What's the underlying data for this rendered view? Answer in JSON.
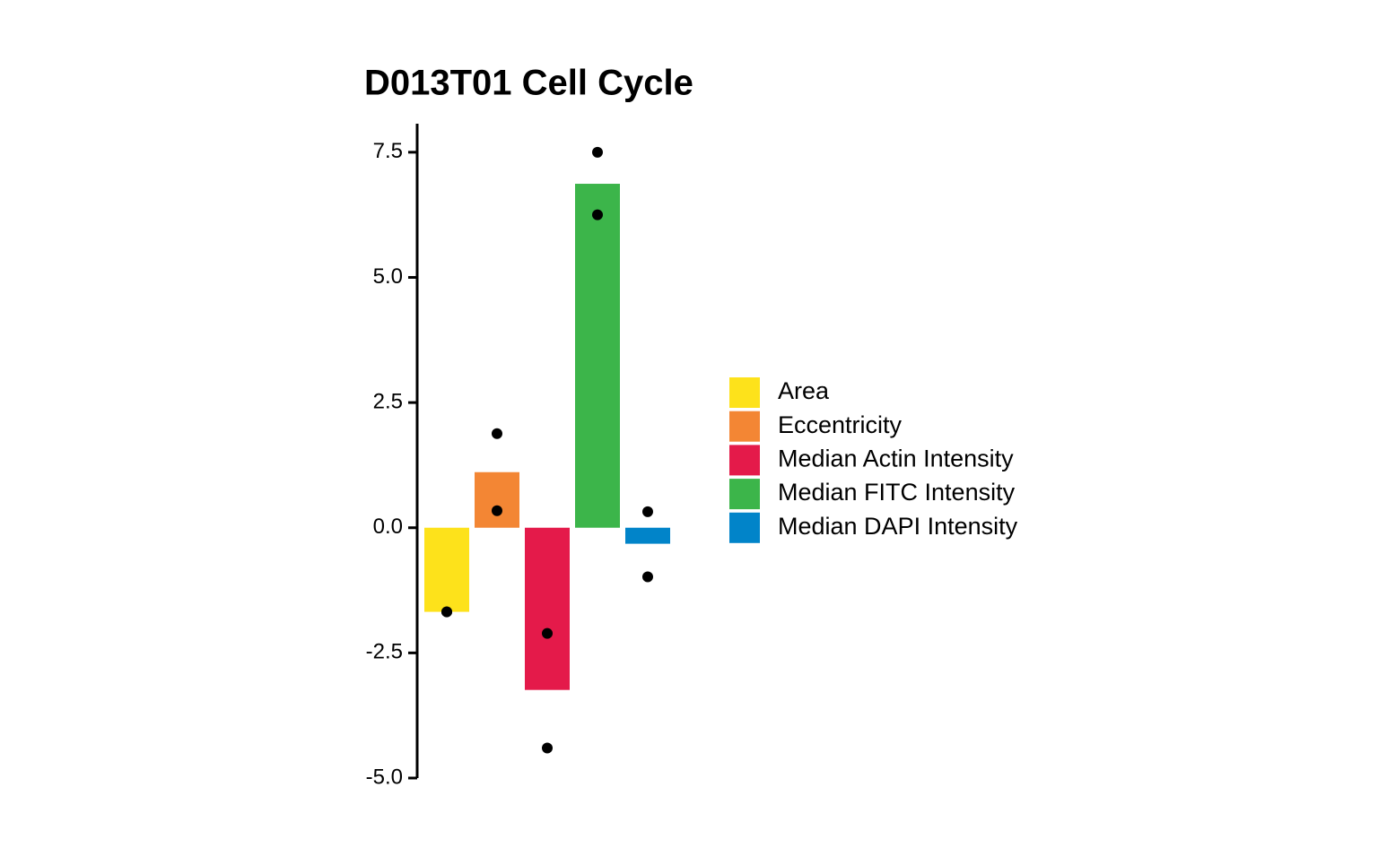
{
  "chart_data": {
    "type": "bar",
    "title": "D013T01 Cell Cycle",
    "categories": [
      "Area",
      "Eccentricity",
      "Median Actin Intensity",
      "Median FITC Intensity",
      "Median DAPI Intensity"
    ],
    "values": [
      -1.68,
      1.11,
      -3.24,
      6.87,
      -0.32
    ],
    "colors": [
      "#fde21b",
      "#f38634",
      "#e41a4a",
      "#3cb54a",
      "#0184c9"
    ],
    "points": [
      [
        -1.68,
        -1.68
      ],
      [
        1.88,
        0.34
      ],
      [
        -2.11,
        -4.4
      ],
      [
        7.5,
        6.25
      ],
      [
        0.32,
        -0.98
      ]
    ],
    "ylim": [
      -5,
      8.07
    ],
    "yticks": [
      {
        "value": -5,
        "label": "-5.0"
      },
      -2.5,
      {
        "value": 0,
        "label": "0.0"
      },
      2.5,
      {
        "value": 5,
        "label": "5.0"
      },
      7.5
    ],
    "grid": false,
    "legend": "right"
  }
}
